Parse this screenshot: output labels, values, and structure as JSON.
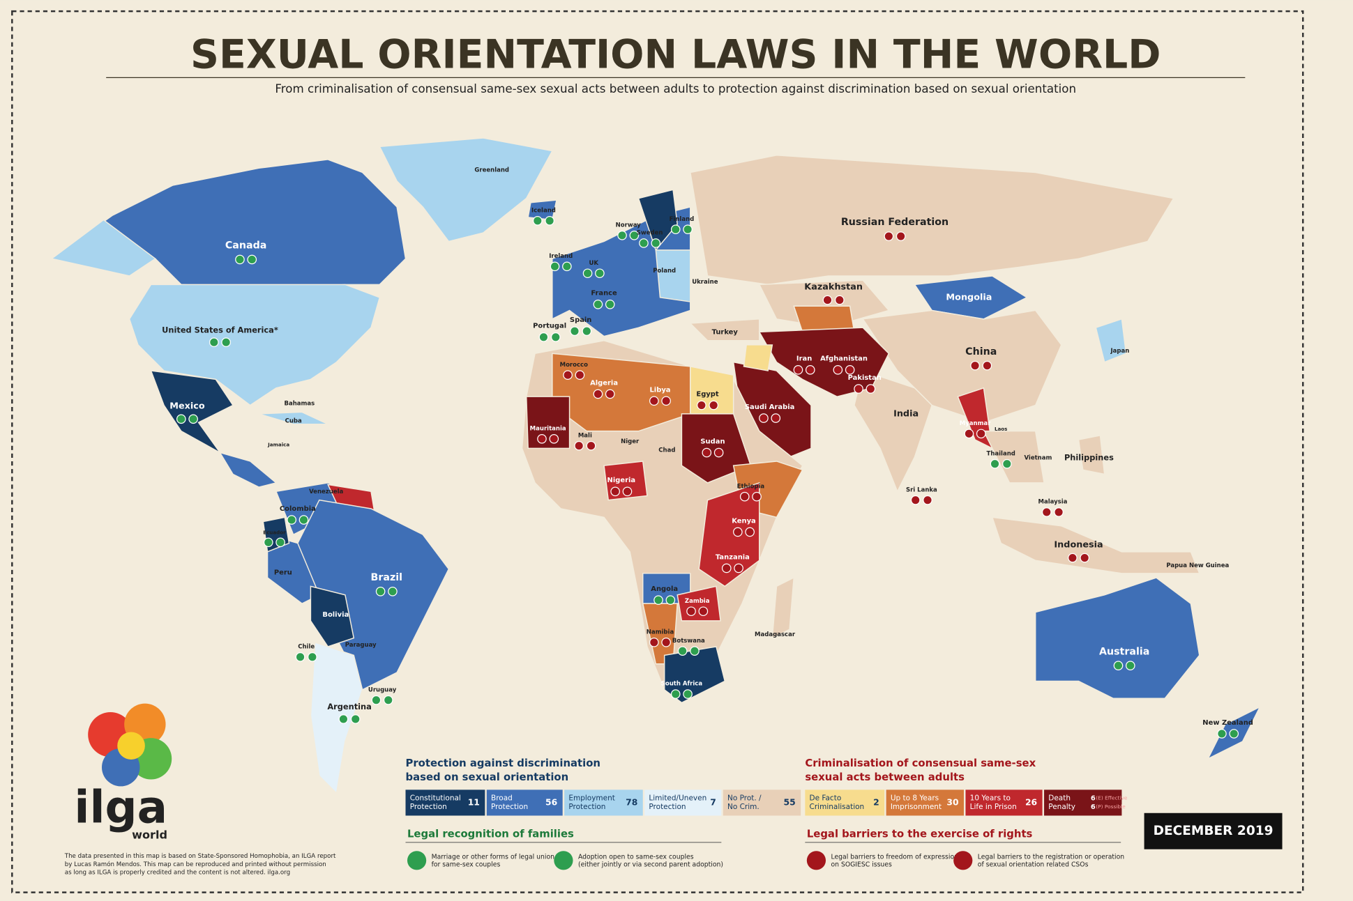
{
  "header": {
    "title": "SEXUAL ORIENTATION LAWS IN THE WORLD",
    "subtitle": "From criminalisation of consensual same-sex sexual acts between adults to protection against discrimination based on sexual orientation"
  },
  "map": {
    "labels": [
      "Canada",
      "United States of America*",
      "Greenland",
      "Mexico",
      "Brazil",
      "Argentina",
      "Bolivia",
      "Peru",
      "Colombia",
      "Venezuela",
      "Chile",
      "Uruguay",
      "Paraguay",
      "Ecuador",
      "Cuba",
      "Bahamas",
      "Jamaica",
      "Iceland",
      "Ireland",
      "Portugal",
      "Spain",
      "France",
      "UK",
      "Norway",
      "Sweden",
      "Finland",
      "Poland",
      "Ukraine",
      "Turkey",
      "Russian Federation",
      "Kazakhstan",
      "Mongolia",
      "China",
      "India",
      "Iran",
      "Afghanistan",
      "Pakistan",
      "Saudi Arabia",
      "Egypt",
      "Algeria",
      "Libya",
      "Morocco",
      "Mauritania",
      "Mali",
      "Niger",
      "Chad",
      "Sudan",
      "Nigeria",
      "Ethiopia",
      "Kenya",
      "Tanzania",
      "Angola",
      "Namibia",
      "Botswana",
      "South Africa",
      "Madagascar",
      "Zambia",
      "Myanmar",
      "Thailand",
      "Philippines",
      "Indonesia",
      "Japan",
      "Australia",
      "New Zealand",
      "Papua New Guinea",
      "Malaysia",
      "Vietnam",
      "Sri Lanka",
      "Laos"
    ]
  },
  "legend": {
    "protection": {
      "title": [
        "Protection against discrimination",
        "based on sexual orientation"
      ],
      "items": [
        {
          "lines": [
            "Constitutional",
            "Protection"
          ],
          "count": 11
        },
        {
          "lines": [
            "Broad",
            "Protection"
          ],
          "count": 56
        },
        {
          "lines": [
            "Employment",
            "Protection"
          ],
          "count": 78
        },
        {
          "lines": [
            "Limited/Uneven",
            "Protection"
          ],
          "count": 7
        },
        {
          "lines": [
            "No Prot. /",
            "No Crim."
          ],
          "count": 55
        }
      ]
    },
    "criminalisation": {
      "title": [
        "Criminalisation of consensual same-sex",
        "sexual acts between adults"
      ],
      "items": [
        {
          "lines": [
            "De Facto",
            "Criminalisation"
          ],
          "count": 2
        },
        {
          "lines": [
            "Up to 8 Years",
            "Imprisonment"
          ],
          "count": 30
        },
        {
          "lines": [
            "10 Years to",
            "Life in Prison"
          ],
          "count": 26
        },
        {
          "lines": [
            "Death",
            "Penalty"
          ],
          "counts": [
            {
              "count": 6,
              "note": "(E) Effective"
            },
            {
              "count": 6,
              "note": "(P) Possible"
            }
          ]
        }
      ]
    },
    "families": {
      "title": "Legal recognition of families",
      "items": [
        {
          "lines": [
            "Marriage or other forms of legal union",
            "for same-sex couples"
          ]
        },
        {
          "lines": [
            "Adoption open to same-sex couples",
            "(either jointly or via second parent adoption)"
          ]
        }
      ]
    },
    "barriers": {
      "title": "Legal barriers to the exercise of rights",
      "items": [
        {
          "lines": [
            "Legal barriers to freedom of expression",
            "on SOGIESC issues"
          ]
        },
        {
          "lines": [
            "Legal barriers to the registration or operation",
            "of sexual orientation related CSOs"
          ]
        }
      ]
    }
  },
  "logo": {
    "name": "ilga",
    "sub": "world"
  },
  "footer": {
    "lines": [
      "The data presented in this map is based on State-Sponsored Homophobia, an ILGA report",
      "by Lucas Ramón Mendos. This map can be reproduced and printed without permission",
      "as long as ILGA is properly credited and the content is not altered. ilga.org"
    ]
  },
  "date": "DECEMBER 2019"
}
